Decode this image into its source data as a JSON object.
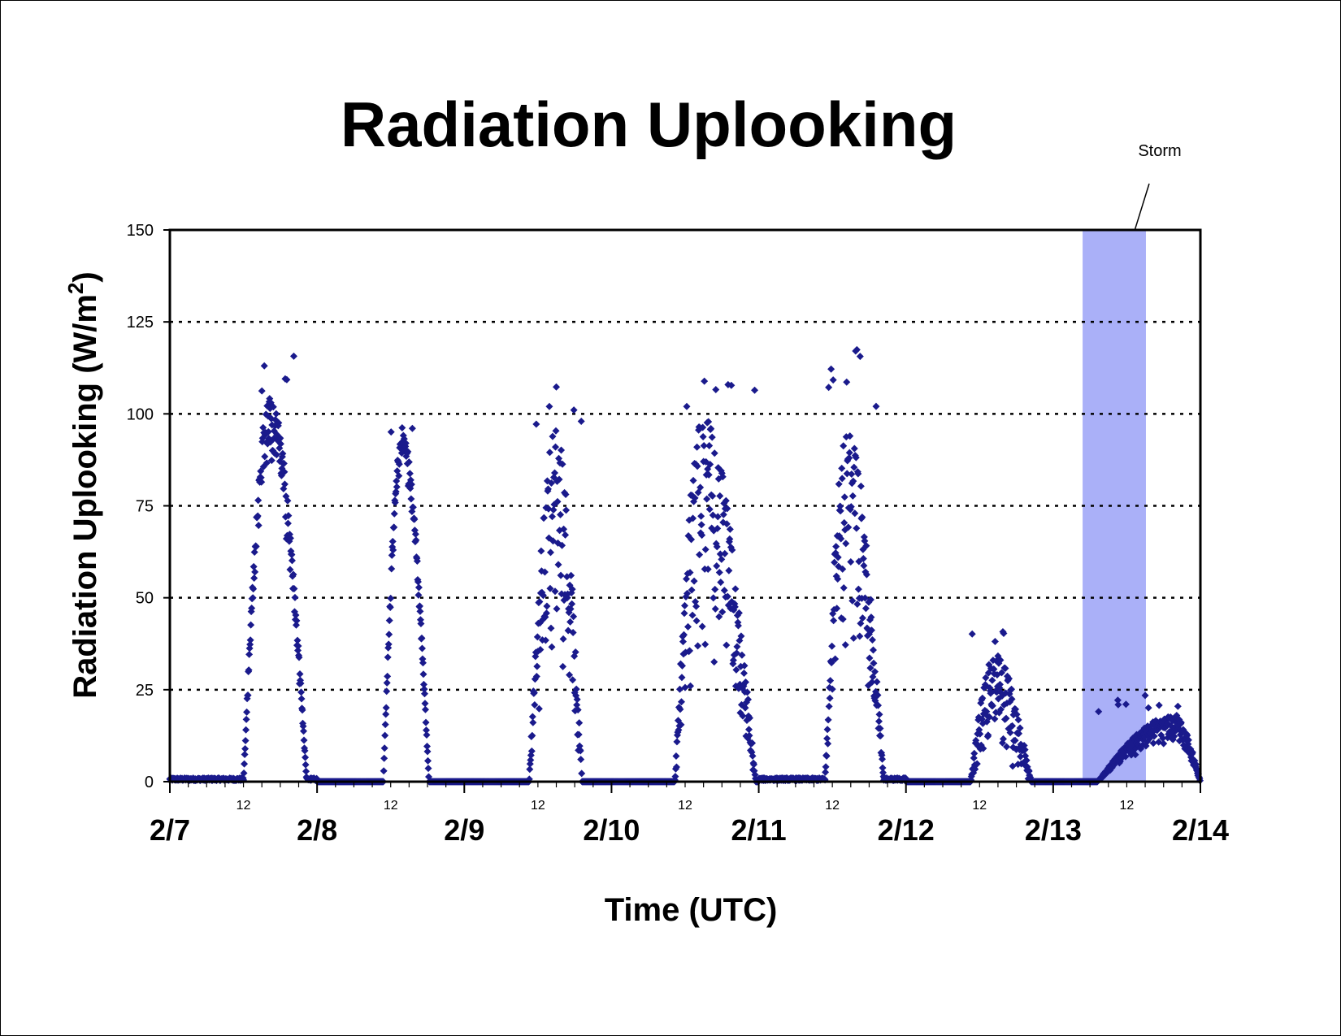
{
  "chart_data": {
    "type": "scatter",
    "title": "Radiation Uplooking",
    "xlabel": "Time (UTC)",
    "ylabel_main": "Radiation Uplooking (W/m",
    "ylabel_sup": "2",
    "ylabel_close": ")",
    "ylim": [
      0,
      150
    ],
    "yticks": [
      "0",
      "25",
      "50",
      "75",
      "100",
      "125",
      "150"
    ],
    "xlim_days": [
      0,
      7
    ],
    "day_labels": [
      "2/7",
      "2/8",
      "2/9",
      "2/10",
      "2/11",
      "2/12",
      "2/13",
      "2/14"
    ],
    "noon_label": "12",
    "grid": {
      "horizontal": true,
      "style": "dotted",
      "lines_at": [
        25,
        50,
        75,
        100,
        125
      ]
    },
    "marker_color": "#1a1a8c",
    "series": [
      {
        "marker": "diamond",
        "days": [
          {
            "day": "2/7",
            "rise": 0.5,
            "peak_time": 0.68,
            "set": 0.93,
            "peak": 105,
            "min_at_peak": 85,
            "max_spike": 117,
            "baseline": 1,
            "notes": "broad noisy peak"
          },
          {
            "day": "2/8",
            "rise": 0.45,
            "peak_time": 0.58,
            "set": 0.76,
            "peak": 95,
            "min_at_peak": 85,
            "max_spike": 97,
            "baseline": 0
          },
          {
            "day": "2/9",
            "rise": 0.44,
            "peak_time": 0.62,
            "set": 0.8,
            "peak": 97,
            "min_at_peak": 30,
            "max_spike": 108,
            "baseline": 0
          },
          {
            "day": "2/10",
            "rise": 0.43,
            "peak_time": 0.62,
            "set": 0.98,
            "peak": 100,
            "min_at_peak": 30,
            "max_spike": 109,
            "baseline": 0
          },
          {
            "day": "2/11",
            "rise": 0.45,
            "peak_time": 0.6,
            "set": 0.85,
            "peak": 97,
            "min_at_peak": 30,
            "max_spike": 121,
            "baseline": 1
          },
          {
            "day": "2/12",
            "rise": 0.44,
            "peak_time": 0.6,
            "set": 0.85,
            "peak": 35,
            "min_at_peak": 5,
            "max_spike": 45,
            "baseline": 0
          },
          {
            "day": "2/13",
            "rise": 0.3,
            "peak_time": 0.82,
            "set": 1.0,
            "peak": 18,
            "min_at_peak": 10,
            "max_spike": 24,
            "baseline": 0
          }
        ]
      }
    ],
    "shaded_region": {
      "label": "Storm",
      "x_start_days": 6.2,
      "x_end_days": 6.63,
      "color": "#aab0f8"
    }
  }
}
